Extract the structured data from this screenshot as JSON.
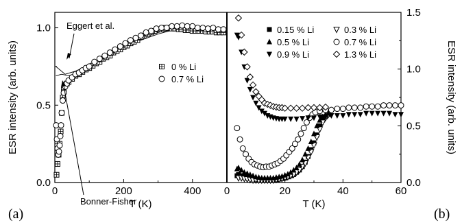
{
  "chart_data": [
    {
      "panel": "(a)",
      "type": "scatter",
      "xlabel": "T (K)",
      "ylabel": "ESR intensity (arb. units)",
      "xlim": [
        0,
        500
      ],
      "ylim": [
        0,
        1.1
      ],
      "xticks": [
        "0",
        "200",
        "400"
      ],
      "yticks": [
        "0.0",
        "0.5",
        "1.0"
      ],
      "legend_position": "center-right",
      "series": [
        {
          "name": "0 % Li",
          "marker": "square-plus",
          "x": [
            5,
            8,
            11,
            14,
            17,
            20,
            23,
            26,
            30,
            35,
            40,
            50,
            60,
            70,
            80,
            90,
            100,
            110,
            120,
            130,
            140,
            150,
            160,
            170,
            180,
            190,
            200,
            210,
            220,
            230,
            240,
            250,
            260,
            270,
            280,
            290,
            300,
            310,
            320,
            330,
            340,
            350,
            360,
            370,
            380,
            390,
            400,
            410,
            420,
            430,
            440,
            450,
            460,
            470,
            480,
            490
          ],
          "y": [
            0.05,
            0.12,
            0.18,
            0.25,
            0.33,
            0.45,
            0.55,
            0.6,
            0.63,
            0.64,
            0.65,
            0.67,
            0.69,
            0.7,
            0.715,
            0.73,
            0.74,
            0.755,
            0.77,
            0.78,
            0.8,
            0.81,
            0.82,
            0.84,
            0.85,
            0.86,
            0.875,
            0.885,
            0.9,
            0.91,
            0.92,
            0.94,
            0.95,
            0.96,
            0.97,
            0.98,
            0.99,
            0.99,
            1.0,
            1.0,
            0.995,
            0.995,
            0.99,
            0.99,
            0.985,
            0.985,
            0.98,
            0.98,
            0.98,
            0.98,
            0.975,
            0.975,
            0.975,
            0.97,
            0.97,
            0.97
          ]
        },
        {
          "name": "0.7 % Li",
          "marker": "circle",
          "x": [
            4,
            6,
            8,
            10,
            12,
            14,
            16,
            18,
            20,
            23,
            26,
            30,
            35,
            40,
            50,
            60,
            70,
            80,
            90,
            100,
            115,
            130,
            145,
            160,
            175,
            190,
            205,
            220,
            235,
            250,
            265,
            280,
            295,
            310,
            325,
            340,
            355,
            370,
            385,
            400,
            415,
            430,
            445,
            460,
            475,
            490
          ],
          "y": [
            0.37,
            0.28,
            0.22,
            0.18,
            0.2,
            0.24,
            0.3,
            0.37,
            0.45,
            0.53,
            0.58,
            0.62,
            0.64,
            0.66,
            0.68,
            0.7,
            0.71,
            0.725,
            0.74,
            0.75,
            0.78,
            0.8,
            0.82,
            0.84,
            0.86,
            0.88,
            0.9,
            0.92,
            0.935,
            0.95,
            0.97,
            0.98,
            0.995,
            1.0,
            1.0,
            1.01,
            1.01,
            1.015,
            1.01,
            1.01,
            1.0,
            1.0,
            0.995,
            1.0,
            0.99,
            0.99
          ]
        }
      ],
      "curves": [
        {
          "name": "Eggert et al.",
          "x": [
            3,
            30,
            60,
            100,
            150,
            200,
            250,
            300,
            350,
            400,
            450,
            495
          ],
          "y": [
            0.75,
            0.7,
            0.72,
            0.76,
            0.82,
            0.88,
            0.93,
            0.97,
            0.99,
            1.0,
            1.0,
            0.99
          ]
        },
        {
          "name": "Bonner-Fisher",
          "x": [
            3,
            20,
            40,
            70,
            100,
            150,
            200,
            250,
            300,
            350,
            400,
            450,
            495
          ],
          "y": [
            0.69,
            0.7,
            0.69,
            0.71,
            0.74,
            0.8,
            0.86,
            0.92,
            0.96,
            0.99,
            1.0,
            1.0,
            0.99
          ]
        }
      ],
      "annotations": [
        "Eggert et al.",
        "Bonner-Fisher"
      ]
    },
    {
      "panel": "(b)",
      "type": "scatter",
      "xlabel": "T (K)",
      "ylabel": "ESR intensity (arb. units)",
      "xlim": [
        0,
        60
      ],
      "ylim": [
        0,
        1.5
      ],
      "xticks": [
        "0",
        "20",
        "40",
        "60"
      ],
      "yticks": [
        "0.0",
        "0.5",
        "1.0",
        "1.5"
      ],
      "legend_position": "top",
      "series": [
        {
          "name": "0.15 % Li",
          "marker": "square-filled",
          "x": [
            3.5,
            4,
            5,
            6,
            7,
            8,
            9,
            10,
            11,
            12,
            13,
            14,
            15,
            16,
            17,
            18,
            19,
            20,
            21,
            22,
            23,
            24,
            25,
            26,
            27,
            28,
            29,
            30,
            31,
            32,
            33,
            34,
            35
          ],
          "y": [
            0.06,
            0.07,
            0.06,
            0.05,
            0.04,
            0.035,
            0.03,
            0.025,
            0.02,
            0.02,
            0.02,
            0.02,
            0.02,
            0.02,
            0.025,
            0.03,
            0.035,
            0.04,
            0.05,
            0.06,
            0.07,
            0.09,
            0.11,
            0.14,
            0.18,
            0.23,
            0.29,
            0.35,
            0.42,
            0.5,
            0.55,
            0.58,
            0.6
          ]
        },
        {
          "name": "0.3 % Li",
          "marker": "triangle-down-open",
          "x": [
            4,
            5,
            6,
            7,
            8,
            9,
            10,
            11,
            12,
            13,
            14,
            15,
            16,
            17,
            18,
            19,
            20,
            21,
            22,
            23,
            24,
            25,
            26,
            27,
            28,
            29,
            30,
            31,
            32,
            33,
            34,
            35
          ],
          "y": [
            0.04,
            0.04,
            0.035,
            0.03,
            0.025,
            0.02,
            0.02,
            0.02,
            0.02,
            0.02,
            0.02,
            0.02,
            0.02,
            0.025,
            0.03,
            0.035,
            0.04,
            0.05,
            0.06,
            0.07,
            0.09,
            0.11,
            0.14,
            0.17,
            0.22,
            0.27,
            0.33,
            0.4,
            0.47,
            0.53,
            0.57,
            0.6
          ]
        },
        {
          "name": "0.5 % Li",
          "marker": "triangle-up-filled",
          "x": [
            3.5,
            4,
            5,
            6,
            7,
            8,
            9,
            10,
            11,
            12,
            13,
            14,
            15,
            16,
            17,
            18,
            19,
            20,
            21,
            22,
            23,
            24,
            25,
            26,
            27,
            28,
            29,
            30,
            31,
            32,
            33,
            34,
            35
          ],
          "y": [
            0.12,
            0.13,
            0.11,
            0.09,
            0.08,
            0.07,
            0.06,
            0.05,
            0.045,
            0.04,
            0.04,
            0.04,
            0.04,
            0.04,
            0.045,
            0.05,
            0.055,
            0.065,
            0.075,
            0.09,
            0.11,
            0.13,
            0.16,
            0.2,
            0.25,
            0.3,
            0.36,
            0.43,
            0.5,
            0.55,
            0.58,
            0.6,
            0.61
          ]
        },
        {
          "name": "0.7 % Li",
          "marker": "circle-open",
          "x": [
            3.5,
            4.5,
            5.5,
            6.5,
            7.5,
            8.5,
            9.5,
            10.5,
            11.5,
            12.5,
            13.5,
            14.5,
            15.5,
            16.5,
            17.5,
            18.5,
            19.5,
            20.5,
            21.5,
            22.5,
            23.5,
            24.5,
            25.5,
            26.5,
            27.5,
            28.5,
            29.5,
            30.5,
            32,
            34,
            36,
            38,
            40,
            42,
            44,
            46,
            48,
            50,
            52,
            54,
            56,
            58,
            60
          ],
          "y": [
            0.48,
            0.38,
            0.3,
            0.25,
            0.21,
            0.18,
            0.16,
            0.15,
            0.14,
            0.135,
            0.14,
            0.14,
            0.15,
            0.16,
            0.17,
            0.19,
            0.21,
            0.24,
            0.27,
            0.3,
            0.34,
            0.38,
            0.43,
            0.48,
            0.53,
            0.57,
            0.6,
            0.62,
            0.63,
            0.64,
            0.64,
            0.65,
            0.65,
            0.66,
            0.66,
            0.66,
            0.67,
            0.67,
            0.67,
            0.68,
            0.68,
            0.68,
            0.68
          ]
        },
        {
          "name": "0.9 % Li",
          "marker": "triangle-down-filled",
          "x": [
            3.5,
            4,
            5,
            6,
            7,
            8,
            9,
            10,
            11,
            12,
            13,
            14,
            15,
            16,
            17,
            18,
            19,
            20,
            22,
            24,
            26,
            28,
            30,
            32,
            34,
            36,
            38,
            40,
            42,
            44,
            46,
            48,
            50,
            52,
            54,
            56,
            58,
            60
          ],
          "y": [
            1.3,
            1.28,
            1.15,
            1.02,
            0.9,
            0.82,
            0.75,
            0.7,
            0.66,
            0.63,
            0.61,
            0.59,
            0.58,
            0.57,
            0.565,
            0.56,
            0.56,
            0.56,
            0.56,
            0.56,
            0.565,
            0.57,
            0.57,
            0.58,
            0.58,
            0.59,
            0.59,
            0.59,
            0.6,
            0.6,
            0.6,
            0.61,
            0.61,
            0.61,
            0.61,
            0.61,
            0.6,
            0.6
          ]
        },
        {
          "name": "1.3 % Li",
          "marker": "diamond-open",
          "x": [
            4,
            5,
            6,
            7,
            8,
            9,
            10,
            11,
            12,
            13,
            14,
            15,
            16,
            17,
            18,
            19,
            20,
            22,
            24,
            26,
            28,
            30,
            32,
            34
          ],
          "y": [
            1.45,
            1.3,
            1.15,
            1.02,
            0.93,
            0.86,
            0.8,
            0.76,
            0.73,
            0.7,
            0.69,
            0.68,
            0.67,
            0.665,
            0.66,
            0.66,
            0.655,
            0.655,
            0.655,
            0.655,
            0.66,
            0.66,
            0.66,
            0.665
          ]
        }
      ]
    }
  ],
  "panel_labels": {
    "a": "(a)",
    "b": "(b)"
  },
  "annotations": {
    "eggert": "Eggert et al.",
    "bonner": "Bonner-Fisher"
  }
}
